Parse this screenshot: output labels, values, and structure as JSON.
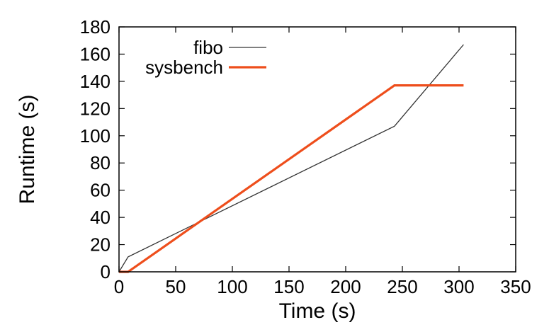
{
  "chart_data": {
    "type": "line",
    "xlabel": "Time (s)",
    "ylabel": "Runtime (s)",
    "xlim": [
      0,
      350
    ],
    "ylim": [
      0,
      180
    ],
    "xticks": [
      0,
      50,
      100,
      150,
      200,
      250,
      300,
      350
    ],
    "yticks": [
      0,
      20,
      40,
      60,
      80,
      100,
      120,
      140,
      160,
      180
    ],
    "grid": false,
    "legend_position": "top-left",
    "series": [
      {
        "name": "fibo",
        "color": "#333333",
        "x": [
          0,
          8,
          243,
          304
        ],
        "y": [
          0,
          11,
          107,
          167
        ]
      },
      {
        "name": "sysbench",
        "color": "#ee4e1c",
        "x": [
          0,
          8,
          243,
          304
        ],
        "y": [
          0,
          0,
          137,
          137
        ]
      }
    ]
  }
}
